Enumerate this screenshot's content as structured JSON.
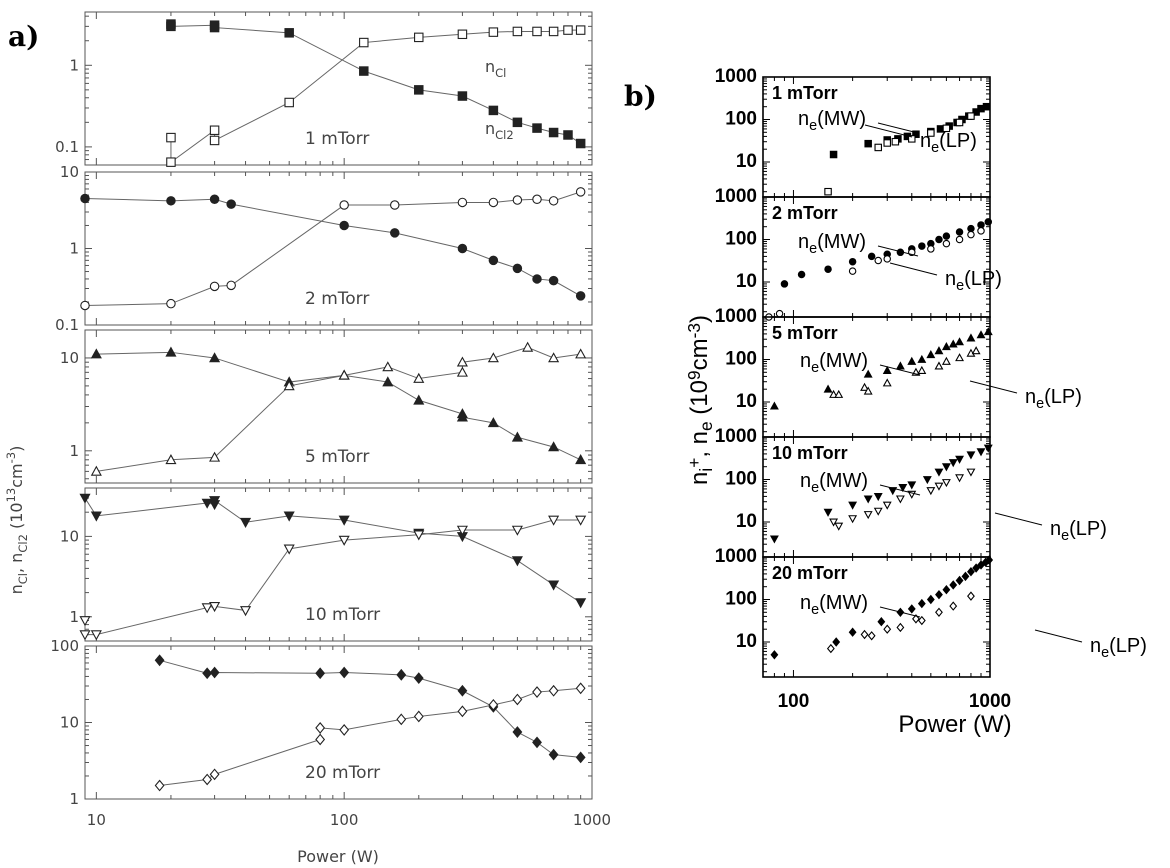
{
  "panel_a_label": "a)",
  "panel_b_label": "b)",
  "chart_data": [
    {
      "type": "scatter",
      "x_log": true,
      "y_log": true,
      "xlim": [
        9,
        1000
      ],
      "xlabel": "Power (W)",
      "ylabel": "n<sub>Cl</sub>, n<sub>Cl2</sub> (10<sup>13</sup>cm<sup>-3</sup>)",
      "xticks": [
        "10",
        "100",
        "1000"
      ],
      "subplots": [
        {
          "pressure": "1 mTorr",
          "ylim": [
            0.06,
            4.5
          ],
          "yticks": [
            "0.1",
            "1"
          ],
          "annotations": [
            "n<sub>Cl</sub>",
            "n<sub>Cl2</sub>"
          ],
          "series": [
            {
              "symbol": "square",
              "filled": true,
              "x": [
                20,
                20,
                30,
                30,
                60,
                120,
                200,
                300,
                400,
                500,
                600,
                700,
                800,
                900
              ],
              "y": [
                3.2,
                3.0,
                3.1,
                2.9,
                2.5,
                0.85,
                0.5,
                0.42,
                0.28,
                0.2,
                0.17,
                0.15,
                0.14,
                0.11
              ]
            },
            {
              "symbol": "square",
              "filled": false,
              "x": [
                20,
                20,
                30,
                30,
                60,
                120,
                200,
                300,
                400,
                500,
                600,
                700,
                800,
                900
              ],
              "y": [
                0.13,
                0.065,
                0.16,
                0.12,
                0.35,
                1.9,
                2.2,
                2.4,
                2.55,
                2.6,
                2.6,
                2.6,
                2.7,
                2.7
              ]
            }
          ]
        },
        {
          "pressure": "2 mTorr",
          "ylim": [
            0.1,
            10
          ],
          "yticks": [
            "0.1",
            "1",
            "10"
          ],
          "series": [
            {
              "symbol": "circle",
              "filled": true,
              "x": [
                9,
                20,
                30,
                35,
                100,
                160,
                300,
                400,
                500,
                600,
                700,
                900
              ],
              "y": [
                4.5,
                4.2,
                4.4,
                3.8,
                2.0,
                1.6,
                1.0,
                0.7,
                0.55,
                0.4,
                0.38,
                0.24
              ]
            },
            {
              "symbol": "circle",
              "filled": false,
              "x": [
                9,
                20,
                30,
                35,
                100,
                160,
                300,
                400,
                500,
                600,
                700,
                900
              ],
              "y": [
                0.18,
                0.19,
                0.32,
                0.33,
                3.7,
                3.7,
                4.0,
                4.0,
                4.3,
                4.4,
                4.2,
                5.5
              ]
            }
          ]
        },
        {
          "pressure": "5 mTorr",
          "ylim": [
            0.45,
            20
          ],
          "yticks": [
            "1",
            "10"
          ],
          "series": [
            {
              "symbol": "triangle-up",
              "filled": true,
              "x": [
                10,
                20,
                30,
                60,
                100,
                150,
                200,
                300,
                300,
                400,
                500,
                700,
                900
              ],
              "y": [
                11,
                11.5,
                10,
                5.5,
                6.5,
                5.5,
                3.5,
                2.5,
                2.3,
                2.0,
                1.4,
                1.1,
                0.8
              ]
            },
            {
              "symbol": "triangle-up",
              "filled": false,
              "x": [
                10,
                20,
                30,
                60,
                100,
                150,
                200,
                300,
                300,
                400,
                550,
                700,
                900
              ],
              "y": [
                0.6,
                0.8,
                0.85,
                5,
                6.5,
                8,
                6,
                7,
                9,
                10,
                13,
                10,
                11
              ]
            }
          ]
        },
        {
          "pressure": "10 mTorr",
          "ylim": [
            0.5,
            40
          ],
          "yticks": [
            "1",
            "10"
          ],
          "series": [
            {
              "symbol": "triangle-down",
              "filled": true,
              "x": [
                9,
                10,
                28,
                30,
                30,
                40,
                60,
                100,
                200,
                300,
                500,
                700,
                900
              ],
              "y": [
                30,
                18,
                26,
                25,
                28,
                15,
                18,
                16,
                11,
                10,
                5,
                2.5,
                1.5
              ]
            },
            {
              "symbol": "triangle-down",
              "filled": false,
              "x": [
                9,
                9,
                10,
                28,
                30,
                40,
                60,
                100,
                200,
                300,
                500,
                700,
                900
              ],
              "y": [
                0.9,
                0.6,
                0.6,
                1.3,
                1.35,
                1.2,
                7,
                9,
                10.5,
                12,
                12,
                16,
                16
              ]
            }
          ]
        },
        {
          "pressure": "20 mTorr",
          "ylim": [
            1,
            100
          ],
          "yticks": [
            "1",
            "10",
            "100"
          ],
          "series": [
            {
              "symbol": "diamond",
              "filled": true,
              "x": [
                18,
                28,
                30,
                80,
                100,
                170,
                200,
                300,
                400,
                500,
                600,
                700,
                900
              ],
              "y": [
                65,
                44,
                45,
                44,
                45,
                42,
                38,
                26,
                16,
                7.5,
                5.5,
                3.8,
                3.5
              ]
            },
            {
              "symbol": "diamond",
              "filled": false,
              "x": [
                18,
                28,
                30,
                80,
                80,
                100,
                170,
                200,
                300,
                400,
                500,
                600,
                700,
                900
              ],
              "y": [
                1.5,
                1.8,
                2.1,
                6,
                8.5,
                8,
                11,
                12,
                14,
                17,
                20,
                25,
                26,
                28
              ]
            }
          ]
        }
      ]
    },
    {
      "type": "scatter",
      "x_log": true,
      "y_log": true,
      "xlim": [
        70,
        1000
      ],
      "xlabel": "Power (W)",
      "ylabel": "n<sub>i</sub><sup>+</sup>, n<sub>e</sub> (10<sup>9</sup>cm<sup>-3</sup>)",
      "xticks": [
        "100",
        "1000"
      ],
      "subplots": [
        {
          "pressure": "1 mTorr",
          "ylim": [
            1.5,
            1000
          ],
          "yticks": [
            "10",
            "100",
            "1000"
          ],
          "annotations": [
            "n<sub>e</sub>(MW)",
            "n<sub>e</sub>(LP)"
          ],
          "series": [
            {
              "symbol": "square",
              "filled": true,
              "x": [
                160,
                240,
                300,
                340,
                380,
                420,
                500,
                560,
                620,
                680,
                720,
                780,
                850,
                900,
                960
              ],
              "y": [
                15,
                27,
                33,
                35,
                40,
                45,
                52,
                60,
                70,
                85,
                100,
                120,
                150,
                180,
                200
              ]
            },
            {
              "symbol": "square",
              "filled": false,
              "x": [
                150,
                270,
                300,
                330,
                400,
                500,
                600,
                700,
                800
              ],
              "y": [
                2,
                22,
                28,
                30,
                35,
                48,
                62,
                85,
                120
              ]
            }
          ]
        },
        {
          "pressure": "2 mTorr",
          "ylim": [
            1.5,
            1000
          ],
          "yticks": [
            "10",
            "100",
            "1000"
          ],
          "annotations": [
            "n<sub>e</sub>(MW)",
            "n<sub>e</sub>(LP)"
          ],
          "series": [
            {
              "symbol": "circle",
              "filled": true,
              "x": [
                90,
                110,
                150,
                200,
                250,
                300,
                350,
                400,
                450,
                500,
                550,
                600,
                700,
                800,
                900,
                980
              ],
              "y": [
                9,
                15,
                20,
                30,
                40,
                45,
                50,
                60,
                70,
                80,
                100,
                120,
                150,
                180,
                220,
                260
              ]
            },
            {
              "symbol": "circle",
              "filled": false,
              "x": [
                75,
                85,
                200,
                270,
                300,
                400,
                500,
                600,
                700,
                800,
                900
              ],
              "y": [
                1.5,
                1.8,
                18,
                32,
                35,
                50,
                60,
                80,
                100,
                130,
                160
              ]
            }
          ]
        },
        {
          "pressure": "5 mTorr",
          "ylim": [
            1.5,
            1000
          ],
          "yticks": [
            "10",
            "100",
            "1000"
          ],
          "annotations": [
            "n<sub>e</sub>(MW)",
            "n<sub>e</sub>(LP)"
          ],
          "series": [
            {
              "symbol": "triangle-up",
              "filled": true,
              "x": [
                80,
                150,
                240,
                300,
                350,
                400,
                450,
                500,
                550,
                600,
                650,
                700,
                800,
                900,
                980
              ],
              "y": [
                8,
                20,
                45,
                55,
                70,
                90,
                100,
                130,
                160,
                200,
                230,
                260,
                320,
                380,
                450
              ]
            },
            {
              "symbol": "triangle-up",
              "filled": false,
              "x": [
                160,
                170,
                230,
                240,
                300,
                420,
                450,
                550,
                600,
                700,
                800,
                850
              ],
              "y": [
                15,
                15,
                22,
                18,
                28,
                50,
                55,
                70,
                90,
                110,
                140,
                160
              ]
            }
          ]
        },
        {
          "pressure": "10 mTorr",
          "ylim": [
            1.5,
            1000
          ],
          "yticks": [
            "10",
            "100",
            "1000"
          ],
          "annotations": [
            "n<sub>e</sub>(MW)",
            "n<sub>e</sub>(LP)"
          ],
          "series": [
            {
              "symbol": "triangle-down",
              "filled": true,
              "x": [
                80,
                150,
                200,
                240,
                270,
                320,
                360,
                400,
                480,
                550,
                600,
                650,
                700,
                800,
                900,
                980
              ],
              "y": [
                4,
                17,
                25,
                35,
                40,
                55,
                65,
                75,
                100,
                150,
                200,
                250,
                300,
                380,
                450,
                550
              ]
            },
            {
              "symbol": "triangle-down",
              "filled": false,
              "x": [
                160,
                170,
                200,
                240,
                270,
                300,
                350,
                400,
                500,
                550,
                600,
                700,
                800
              ],
              "y": [
                10,
                8,
                12,
                15,
                18,
                25,
                35,
                45,
                55,
                70,
                85,
                110,
                150
              ]
            }
          ]
        },
        {
          "pressure": "20 mTorr",
          "ylim": [
            1.5,
            1000
          ],
          "yticks": [
            "10",
            "100",
            "1000"
          ],
          "annotations": [
            "n<sub>e</sub>(MW)",
            "n<sub>e</sub>(LP)"
          ],
          "series": [
            {
              "symbol": "diamond",
              "filled": true,
              "x": [
                80,
                165,
                200,
                280,
                350,
                400,
                450,
                500,
                550,
                600,
                650,
                700,
                750,
                800,
                850,
                900,
                950,
                990
              ],
              "y": [
                5,
                10,
                17,
                30,
                50,
                60,
                80,
                100,
                130,
                170,
                220,
                280,
                350,
                450,
                550,
                650,
                750,
                850
              ]
            },
            {
              "symbol": "diamond",
              "filled": false,
              "x": [
                155,
                230,
                250,
                300,
                350,
                420,
                450,
                550,
                650,
                800
              ],
              "y": [
                7,
                15,
                14,
                20,
                22,
                35,
                32,
                50,
                70,
                120
              ]
            }
          ]
        }
      ]
    }
  ]
}
